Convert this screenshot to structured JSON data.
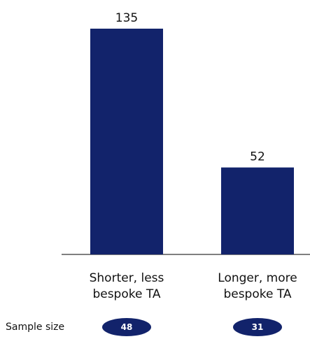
{
  "chart_data": {
    "type": "bar",
    "categories": [
      "Shorter, less bespoke TA",
      "Longer, more bespoke TA"
    ],
    "category_lines": [
      [
        "Shorter, less",
        "bespoke TA"
      ],
      [
        "Longer, more",
        "bespoke TA"
      ]
    ],
    "values": [
      135,
      52
    ],
    "data_labels": [
      "135",
      "52"
    ],
    "ylim": [
      0,
      135
    ],
    "grid": false,
    "bar_color": "#12236b",
    "sample_size": {
      "label": "Sample size",
      "values": [
        "48",
        "31"
      ]
    }
  }
}
